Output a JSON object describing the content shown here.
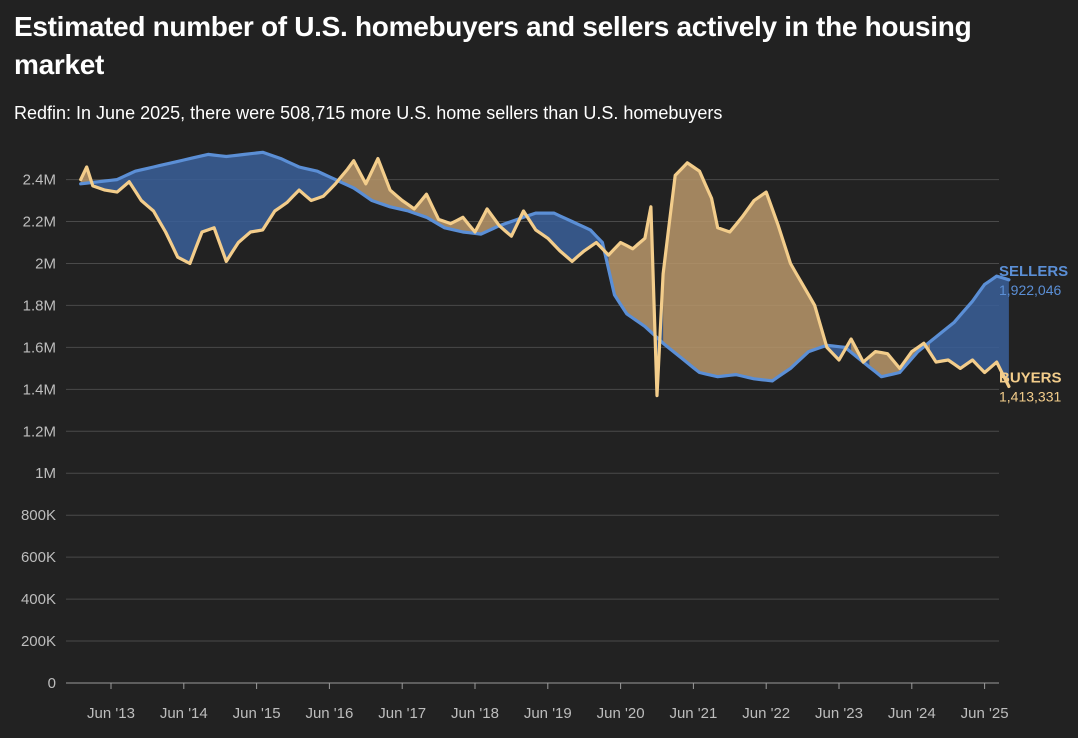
{
  "title": "Estimated number of U.S. homebuyers and sellers actively in the housing market",
  "subtitle": "Redfin: In June 2025, there were 508,715 more U.S. home sellers than U.S. homebuyers",
  "colors": {
    "background": "#222222",
    "sellers": "#5b8fd6",
    "sellers_fill": "#3a5f99",
    "buyers": "#f3cd8b",
    "buyers_fill": "#b8976a",
    "grid": "#4a4a4a",
    "tick": "#bdbdbd"
  },
  "chart_data": {
    "type": "line",
    "title": "Estimated number of U.S. homebuyers and sellers actively in the housing market",
    "subtitle": "Redfin: In June 2025, there were 508,715 more U.S. home sellers than U.S. homebuyers",
    "x_ticks": [
      "Jun '13",
      "Jun '14",
      "Jun '15",
      "Jun '16",
      "Jun '17",
      "Jun '18",
      "Jun '19",
      "Jun '20",
      "Jun '21",
      "Jun '22",
      "Jun '23",
      "Jun '24",
      "Jun '25"
    ],
    "y_ticks": [
      "0",
      "200K",
      "400K",
      "600K",
      "800K",
      "1M",
      "1.2M",
      "1.4M",
      "1.6M",
      "1.8M",
      "2M",
      "2.2M",
      "2.4M"
    ],
    "y_tick_values": [
      0,
      200000,
      400000,
      600000,
      800000,
      1000000,
      1200000,
      1400000,
      1600000,
      1800000,
      2000000,
      2200000,
      2400000
    ],
    "x_range": [
      "2012-12",
      "2025-06"
    ],
    "ylim": [
      0,
      2560000
    ],
    "grid": true,
    "legend": "end-labels (right)",
    "end_labels": [
      {
        "name": "SELLERS",
        "value": "1,922,046"
      },
      {
        "name": "BUYERS",
        "value": "1,413,331"
      }
    ],
    "series": [
      {
        "name": "SELLERS",
        "points": [
          [
            "2013-01",
            2380000
          ],
          [
            "2013-04",
            2390000
          ],
          [
            "2013-07",
            2400000
          ],
          [
            "2013-10",
            2440000
          ],
          [
            "2014-01",
            2460000
          ],
          [
            "2014-04",
            2480000
          ],
          [
            "2014-07",
            2500000
          ],
          [
            "2014-10",
            2520000
          ],
          [
            "2015-01",
            2510000
          ],
          [
            "2015-04",
            2520000
          ],
          [
            "2015-07",
            2530000
          ],
          [
            "2015-10",
            2500000
          ],
          [
            "2016-01",
            2460000
          ],
          [
            "2016-04",
            2440000
          ],
          [
            "2016-07",
            2400000
          ],
          [
            "2016-10",
            2360000
          ],
          [
            "2017-01",
            2300000
          ],
          [
            "2017-04",
            2270000
          ],
          [
            "2017-07",
            2250000
          ],
          [
            "2017-10",
            2220000
          ],
          [
            "2018-01",
            2170000
          ],
          [
            "2018-04",
            2150000
          ],
          [
            "2018-07",
            2140000
          ],
          [
            "2018-10",
            2180000
          ],
          [
            "2019-01",
            2210000
          ],
          [
            "2019-04",
            2240000
          ],
          [
            "2019-07",
            2240000
          ],
          [
            "2019-10",
            2200000
          ],
          [
            "2020-01",
            2160000
          ],
          [
            "2020-03",
            2100000
          ],
          [
            "2020-05",
            1850000
          ],
          [
            "2020-07",
            1760000
          ],
          [
            "2020-10",
            1700000
          ],
          [
            "2021-01",
            1620000
          ],
          [
            "2021-04",
            1550000
          ],
          [
            "2021-07",
            1480000
          ],
          [
            "2021-10",
            1460000
          ],
          [
            "2022-01",
            1470000
          ],
          [
            "2022-04",
            1450000
          ],
          [
            "2022-07",
            1440000
          ],
          [
            "2022-10",
            1500000
          ],
          [
            "2023-01",
            1580000
          ],
          [
            "2023-04",
            1610000
          ],
          [
            "2023-07",
            1600000
          ],
          [
            "2023-10",
            1530000
          ],
          [
            "2024-01",
            1460000
          ],
          [
            "2024-04",
            1480000
          ],
          [
            "2024-07",
            1580000
          ],
          [
            "2024-10",
            1650000
          ],
          [
            "2025-01",
            1720000
          ],
          [
            "2025-04",
            1820000
          ],
          [
            "2025-06",
            1900000
          ],
          [
            "2025-08",
            1940000
          ],
          [
            "2025-10",
            1922046
          ]
        ]
      },
      {
        "name": "BUYERS",
        "points": [
          [
            "2013-01",
            2400000
          ],
          [
            "2013-02",
            2460000
          ],
          [
            "2013-03",
            2370000
          ],
          [
            "2013-05",
            2350000
          ],
          [
            "2013-07",
            2340000
          ],
          [
            "2013-09",
            2390000
          ],
          [
            "2013-11",
            2300000
          ],
          [
            "2014-01",
            2250000
          ],
          [
            "2014-03",
            2150000
          ],
          [
            "2014-05",
            2030000
          ],
          [
            "2014-07",
            2000000
          ],
          [
            "2014-09",
            2150000
          ],
          [
            "2014-11",
            2170000
          ],
          [
            "2015-01",
            2010000
          ],
          [
            "2015-03",
            2100000
          ],
          [
            "2015-05",
            2150000
          ],
          [
            "2015-07",
            2160000
          ],
          [
            "2015-09",
            2250000
          ],
          [
            "2015-11",
            2290000
          ],
          [
            "2016-01",
            2350000
          ],
          [
            "2016-03",
            2300000
          ],
          [
            "2016-05",
            2320000
          ],
          [
            "2016-07",
            2380000
          ],
          [
            "2016-09",
            2450000
          ],
          [
            "2016-10",
            2490000
          ],
          [
            "2016-12",
            2380000
          ],
          [
            "2017-02",
            2500000
          ],
          [
            "2017-04",
            2350000
          ],
          [
            "2017-06",
            2300000
          ],
          [
            "2017-08",
            2260000
          ],
          [
            "2017-10",
            2330000
          ],
          [
            "2017-12",
            2210000
          ],
          [
            "2018-02",
            2190000
          ],
          [
            "2018-04",
            2220000
          ],
          [
            "2018-06",
            2150000
          ],
          [
            "2018-08",
            2260000
          ],
          [
            "2018-10",
            2180000
          ],
          [
            "2018-12",
            2130000
          ],
          [
            "2019-02",
            2250000
          ],
          [
            "2019-04",
            2160000
          ],
          [
            "2019-06",
            2120000
          ],
          [
            "2019-08",
            2060000
          ],
          [
            "2019-10",
            2010000
          ],
          [
            "2019-12",
            2060000
          ],
          [
            "2020-02",
            2100000
          ],
          [
            "2020-04",
            2040000
          ],
          [
            "2020-06",
            2100000
          ],
          [
            "2020-08",
            2070000
          ],
          [
            "2020-10",
            2120000
          ],
          [
            "2020-11",
            2270000
          ],
          [
            "2020-12",
            1370000
          ],
          [
            "2021-01",
            1950000
          ],
          [
            "2021-03",
            2420000
          ],
          [
            "2021-05",
            2480000
          ],
          [
            "2021-07",
            2440000
          ],
          [
            "2021-09",
            2310000
          ],
          [
            "2021-10",
            2170000
          ],
          [
            "2021-12",
            2150000
          ],
          [
            "2022-02",
            2220000
          ],
          [
            "2022-04",
            2300000
          ],
          [
            "2022-06",
            2340000
          ],
          [
            "2022-08",
            2180000
          ],
          [
            "2022-10",
            2000000
          ],
          [
            "2022-12",
            1900000
          ],
          [
            "2023-02",
            1800000
          ],
          [
            "2023-04",
            1600000
          ],
          [
            "2023-06",
            1540000
          ],
          [
            "2023-08",
            1640000
          ],
          [
            "2023-10",
            1530000
          ],
          [
            "2023-12",
            1580000
          ],
          [
            "2024-02",
            1570000
          ],
          [
            "2024-04",
            1500000
          ],
          [
            "2024-06",
            1580000
          ],
          [
            "2024-08",
            1620000
          ],
          [
            "2024-10",
            1530000
          ],
          [
            "2024-12",
            1540000
          ],
          [
            "2025-02",
            1500000
          ],
          [
            "2025-04",
            1540000
          ],
          [
            "2025-06",
            1480000
          ],
          [
            "2025-08",
            1530000
          ],
          [
            "2025-10",
            1413331
          ]
        ]
      }
    ]
  }
}
